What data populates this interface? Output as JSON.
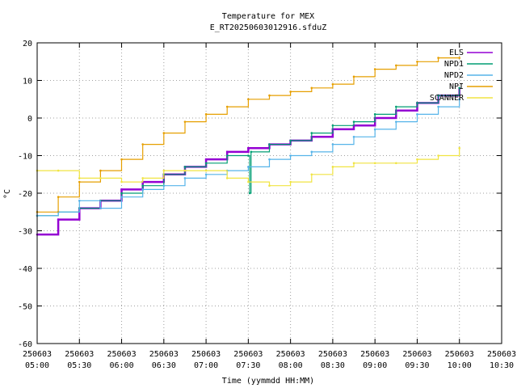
{
  "chart_data": {
    "type": "line",
    "title": "Temperature for MEX",
    "subtitle": "E_RT20250603012916.sfduZ",
    "xlabel": "Time (yymmdd HH:MM)",
    "ylabel": "°C",
    "ylim": [
      -60,
      20
    ],
    "yticks": [
      20,
      10,
      0,
      -10,
      -20,
      -30,
      -40,
      -50,
      -60
    ],
    "xlim": [
      "2025-06-03 05:00",
      "2025-06-03 10:30"
    ],
    "xticks": [
      {
        "date": "250603",
        "time": "05:00"
      },
      {
        "date": "250603",
        "time": "05:30"
      },
      {
        "date": "250603",
        "time": "06:00"
      },
      {
        "date": "250603",
        "time": "06:30"
      },
      {
        "date": "250603",
        "time": "07:00"
      },
      {
        "date": "250603",
        "time": "07:30"
      },
      {
        "date": "250603",
        "time": "08:00"
      },
      {
        "date": "250603",
        "time": "08:30"
      },
      {
        "date": "250603",
        "time": "09:00"
      },
      {
        "date": "250603",
        "time": "09:30"
      },
      {
        "date": "250603",
        "time": "10:00"
      },
      {
        "date": "250603",
        "time": "10:30"
      }
    ],
    "grid": true,
    "legend_position": "top-right",
    "series": [
      {
        "name": "ELS",
        "color": "#9400d3",
        "x": [
          "05:00",
          "05:15",
          "05:30",
          "05:45",
          "06:00",
          "06:15",
          "06:30",
          "06:45",
          "07:00",
          "07:15",
          "07:30",
          "07:45",
          "08:00",
          "08:15",
          "08:30",
          "08:45",
          "09:00",
          "09:15",
          "09:30",
          "09:45",
          "10:00"
        ],
        "y": [
          -31,
          -27,
          -24,
          -22,
          -19,
          -17,
          -15,
          -13,
          -11,
          -9,
          -8,
          -7,
          -6,
          -5,
          -3,
          -2,
          0,
          2,
          4,
          6,
          8
        ]
      },
      {
        "name": "NPD1",
        "color": "#009e73",
        "x": [
          "05:00",
          "05:15",
          "05:30",
          "05:45",
          "06:00",
          "06:15",
          "06:30",
          "06:45",
          "07:00",
          "07:15",
          "07:30",
          "07:31",
          "07:32",
          "07:45",
          "08:00",
          "08:15",
          "08:30",
          "08:45",
          "09:00",
          "09:15",
          "09:30",
          "09:45",
          "10:00"
        ],
        "y": [
          -26,
          -25,
          -24,
          -22,
          -20,
          -18,
          -15,
          -13,
          -12,
          -10,
          -10,
          -20,
          -9,
          -7,
          -6,
          -4,
          -2,
          -1,
          1,
          3,
          4,
          6,
          8
        ]
      },
      {
        "name": "NPD2",
        "color": "#56b4e9",
        "x": [
          "05:00",
          "05:15",
          "05:30",
          "05:45",
          "06:00",
          "06:15",
          "06:30",
          "06:45",
          "07:00",
          "07:15",
          "07:30",
          "07:45",
          "08:00",
          "08:15",
          "08:30",
          "08:45",
          "09:00",
          "09:15",
          "09:30",
          "09:45",
          "10:00"
        ],
        "y": [
          -26,
          -25,
          -22,
          -24,
          -21,
          -19,
          -18,
          -16,
          -15,
          -14,
          -13,
          -11,
          -10,
          -9,
          -7,
          -5,
          -3,
          -1,
          1,
          3,
          5
        ]
      },
      {
        "name": "NPI",
        "color": "#e69f00",
        "x": [
          "05:00",
          "05:15",
          "05:30",
          "05:45",
          "06:00",
          "06:15",
          "06:30",
          "06:45",
          "07:00",
          "07:15",
          "07:30",
          "07:45",
          "08:00",
          "08:15",
          "08:30",
          "08:45",
          "09:00",
          "09:15",
          "09:30",
          "09:45",
          "10:00"
        ],
        "y": [
          -25,
          -21,
          -17,
          -14,
          -11,
          -7,
          -4,
          -1,
          1,
          3,
          5,
          6,
          7,
          8,
          9,
          11,
          13,
          14,
          15,
          16,
          16
        ]
      },
      {
        "name": "SCANNER",
        "color": "#f0e442",
        "x": [
          "05:00",
          "05:15",
          "05:30",
          "05:45",
          "06:00",
          "06:15",
          "06:30",
          "06:45",
          "07:00",
          "07:15",
          "07:30",
          "07:45",
          "08:00",
          "08:15",
          "08:30",
          "08:45",
          "09:00",
          "09:15",
          "09:30",
          "09:45",
          "10:00"
        ],
        "y": [
          -14,
          -14,
          -16,
          -16,
          -17,
          -16,
          -14,
          -14,
          -14,
          -16,
          -17,
          -18,
          -17,
          -15,
          -13,
          -12,
          -12,
          -12,
          -11,
          -10,
          -8
        ]
      }
    ]
  }
}
